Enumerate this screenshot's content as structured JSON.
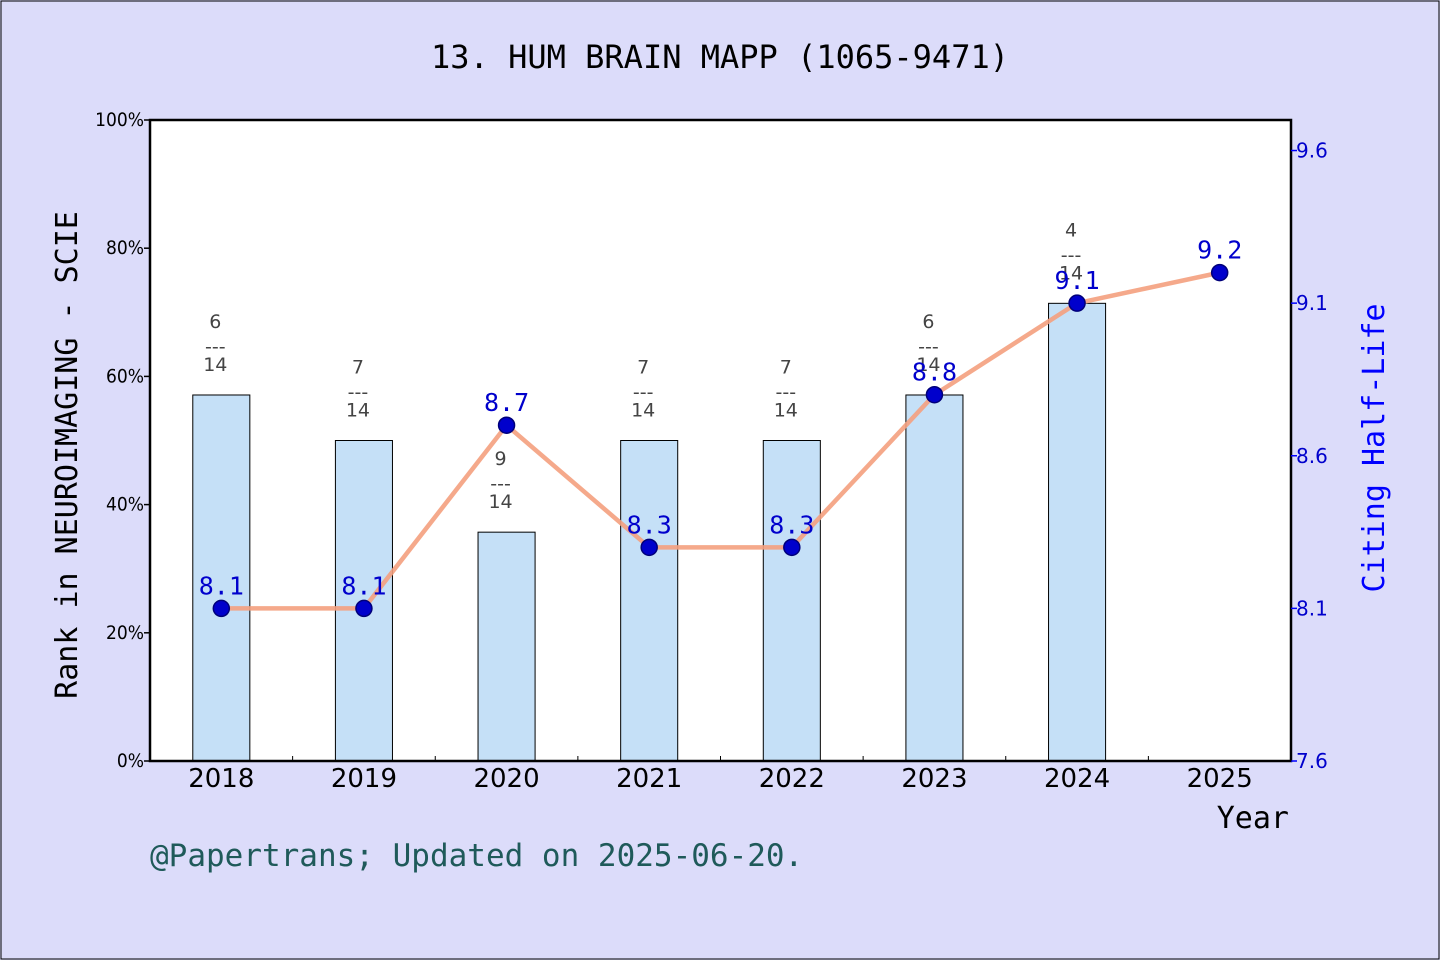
{
  "title": "13. HUM BRAIN MAPP (1065-9471)",
  "footer": "@Papertrans; Updated on 2025-06-20.",
  "colors": {
    "background": "#dcdcfa",
    "bar_fill": "#c5e0f7",
    "line": "#f4a07e",
    "marker": "#0000cc",
    "right_axis": "#0000ff",
    "footer": "#1f5a5a"
  },
  "chart_data": {
    "type": "bar",
    "xlabel": "Year",
    "ylabel": "Rank in NEUROIMAGING - SCIE",
    "y2label": "Citing Half-Life",
    "categories": [
      "2018",
      "2019",
      "2020",
      "2021",
      "2022",
      "2023",
      "2024",
      "2025"
    ],
    "ylim": [
      0,
      100
    ],
    "y_ticks": [
      "0%",
      "20%",
      "40%",
      "60%",
      "80%",
      "100%"
    ],
    "y2lim": [
      7.6,
      9.7
    ],
    "y2_ticks": [
      "7.6",
      "8.1",
      "8.6",
      "9.1",
      "9.6"
    ],
    "grid": false,
    "series": [
      {
        "kind": "bar",
        "values": [
          57.1,
          50.0,
          35.7,
          50.0,
          50.0,
          57.1,
          71.4,
          null
        ],
        "labels": [
          {
            "rank": "6",
            "sep": "---",
            "total": "14"
          },
          {
            "rank": "7",
            "sep": "---",
            "total": "14"
          },
          {
            "rank": "9",
            "sep": "---",
            "total": "14"
          },
          {
            "rank": "7",
            "sep": "---",
            "total": "14"
          },
          {
            "rank": "7",
            "sep": "---",
            "total": "14"
          },
          {
            "rank": "6",
            "sep": "---",
            "total": "14"
          },
          {
            "rank": "4",
            "sep": "---",
            "total": "14"
          },
          null
        ]
      },
      {
        "kind": "line",
        "axis": "right",
        "values": [
          8.1,
          8.1,
          8.7,
          8.3,
          8.3,
          8.8,
          9.1,
          9.2
        ],
        "labels": [
          "8.1",
          "8.1",
          "8.7",
          "8.3",
          "8.3",
          "8.8",
          "9.1",
          "9.2"
        ]
      }
    ]
  }
}
